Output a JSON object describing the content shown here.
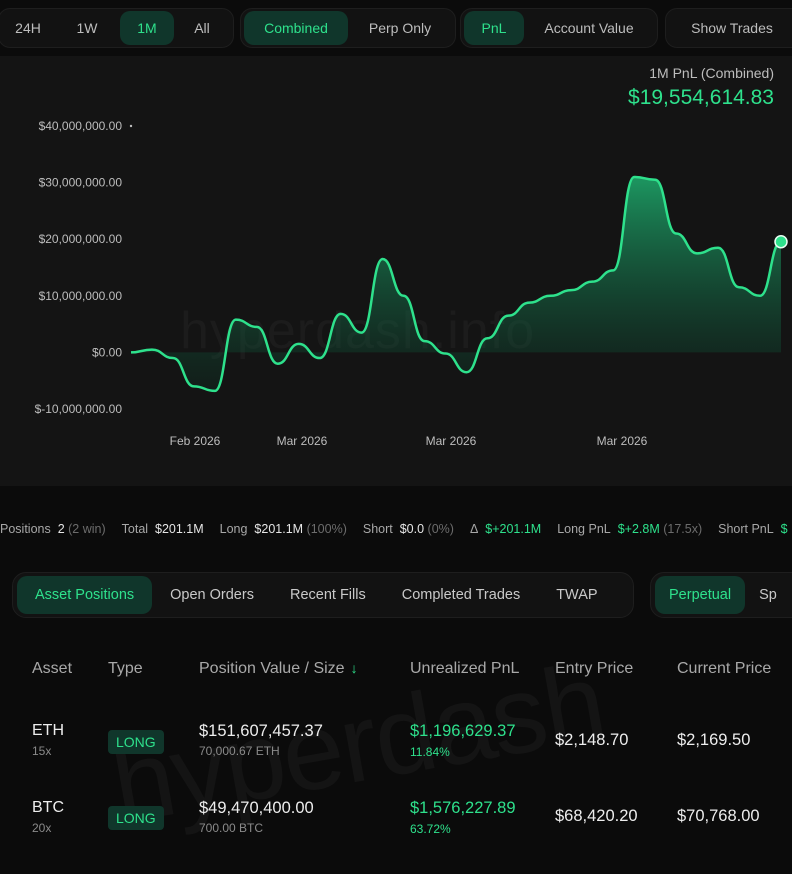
{
  "timeframe": {
    "options": [
      "24H",
      "1W",
      "1M",
      "All"
    ],
    "selected": "1M"
  },
  "scope": {
    "options": [
      "Combined",
      "Perp Only"
    ],
    "selected": "Combined"
  },
  "metric": {
    "options": [
      "PnL",
      "Account Value"
    ],
    "selected": "PnL"
  },
  "show_trades_label": "Show Trades",
  "summary": {
    "label": "1M PnL (Combined)",
    "value": "$19,554,614.83"
  },
  "watermark": "hyperdash.info",
  "chart_data": {
    "type": "area",
    "title": "",
    "ylabel": "",
    "ylim": [
      -10000000,
      40000000
    ],
    "yticks": [
      "$40,000,000.00",
      "$30,000,000.00",
      "$20,000,000.00",
      "$10,000,000.00",
      "$0.00",
      "$-10,000,000.00"
    ],
    "xticks": [
      "Feb 2026",
      "Mar 2026",
      "Mar 2026",
      "Mar 2026"
    ],
    "series": [
      {
        "values": [
          0,
          500000,
          -1000000,
          -6000000,
          -6800000,
          5800000,
          4500000,
          -2000000,
          1500000,
          -1000000,
          6800000,
          3500000,
          16500000,
          10000000,
          2000000,
          -200000,
          -3500000,
          2500000,
          6500000,
          8800000,
          10000000,
          11000000,
          12500000,
          14500000,
          31000000,
          30500000,
          21000000,
          17500000,
          18500000,
          11500000,
          10000000,
          19554614.83
        ]
      }
    ]
  },
  "stats": {
    "positions_label": "Positions",
    "positions_count": "2",
    "positions_win": "(2 win)",
    "total_label": "Total",
    "total_value": "$201.1M",
    "long_label": "Long",
    "long_value": "$201.1M",
    "long_pct": "(100%)",
    "short_label": "Short",
    "short_value": "$0.0",
    "short_pct": "(0%)",
    "delta_symbol": "Δ",
    "delta_value": "$+201.1M",
    "long_pnl_label": "Long PnL",
    "long_pnl_value": "$+2.8M",
    "long_pnl_mult": "(17.5x)",
    "short_pnl_label": "Short PnL",
    "short_pnl_value": "$"
  },
  "tabs": [
    "Asset Positions",
    "Open Orders",
    "Recent Fills",
    "Completed Trades",
    "TWAP"
  ],
  "active_tab": "Asset Positions",
  "market_tabs": [
    "Perpetual",
    "Sp"
  ],
  "table": {
    "headers": {
      "asset": "Asset",
      "type": "Type",
      "value": "Position Value / Size",
      "sort_arrow": "↓",
      "upnl": "Unrealized PnL",
      "entry": "Entry Price",
      "current": "Current Price"
    },
    "rows": [
      {
        "asset": "ETH",
        "leverage": "15x",
        "type": "LONG",
        "value": "$151,607,457.37",
        "size": "70,000.67 ETH",
        "upnl": "$1,196,629.37",
        "upnl_pct": "11.84%",
        "entry": "$2,148.70",
        "current": "$2,169.50"
      },
      {
        "asset": "BTC",
        "leverage": "20x",
        "type": "LONG",
        "value": "$49,470,400.00",
        "size": "700.00 BTC",
        "upnl": "$1,576,227.89",
        "upnl_pct": "63.72%",
        "entry": "$68,420.20",
        "current": "$70,768.00"
      }
    ]
  }
}
